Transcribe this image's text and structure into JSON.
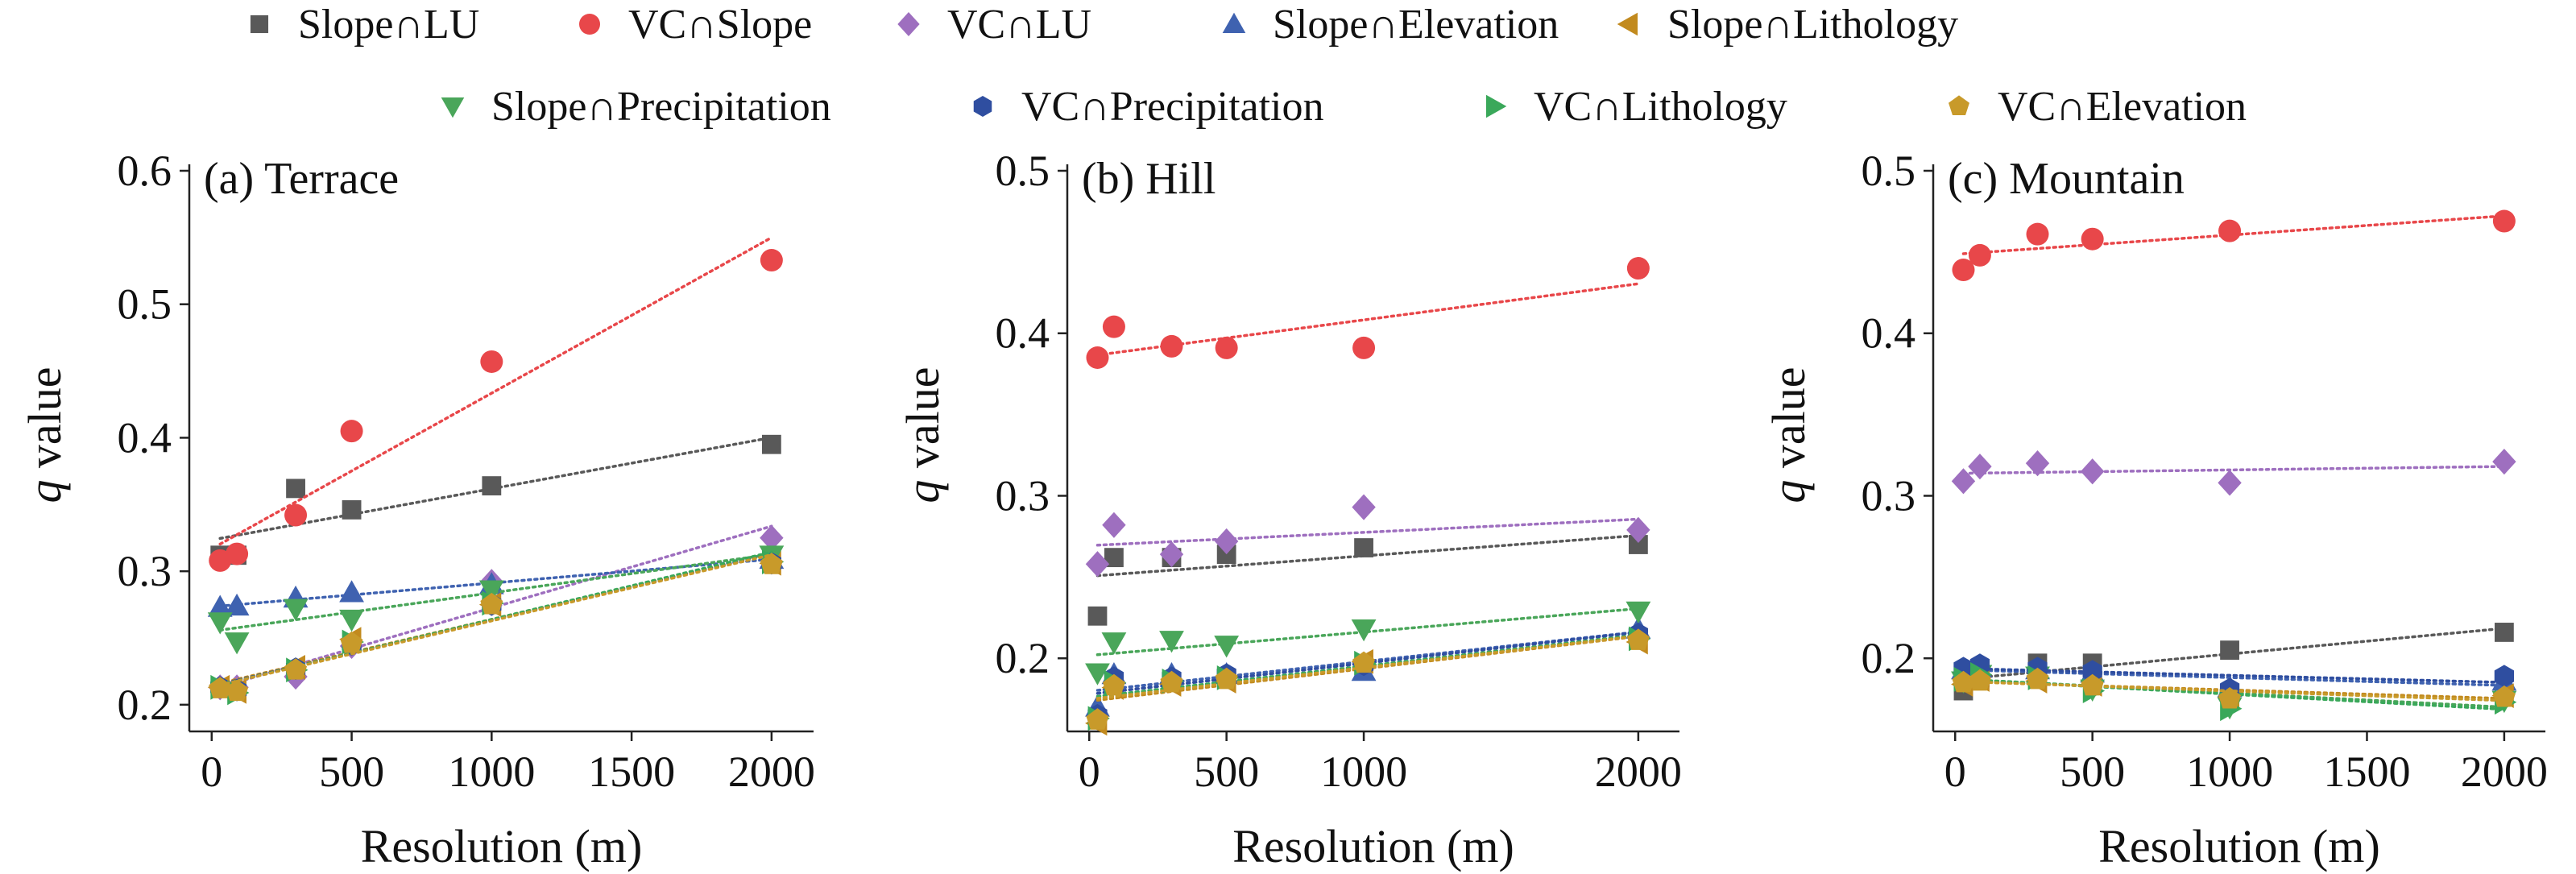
{
  "legend": {
    "row1": [
      {
        "label": "Slope∩LU",
        "marker": "square",
        "color": "#595959"
      },
      {
        "label": "VC∩Slope",
        "marker": "circle",
        "color": "#e8474a"
      },
      {
        "label": "VC∩LU",
        "marker": "diamond",
        "color": "#9e6fbf"
      },
      {
        "label": "Slope∩Elevation",
        "marker": "triangle-up",
        "color": "#3f62b0"
      },
      {
        "label": "Slope∩Lithology",
        "marker": "triangle-left",
        "color": "#c28a1e"
      }
    ],
    "row2": [
      {
        "label": "Slope∩Precipitation",
        "marker": "triangle-down",
        "color": "#4aa65a"
      },
      {
        "label": "VC∩Precipitation",
        "marker": "hexagon",
        "color": "#2f4ea0"
      },
      {
        "label": "VC∩Lithology",
        "marker": "triangle-right",
        "color": "#3aa85a"
      },
      {
        "label": "VC∩Elevation",
        "marker": "pentagon",
        "color": "#c89a2a"
      }
    ]
  },
  "chart_data": [
    {
      "type": "scatter",
      "title": "(a) Terrace",
      "xlabel": "Resolution (m)",
      "ylabel_italic": "q",
      "ylabel": " value",
      "xlim": [
        -80,
        2150
      ],
      "ylim": [
        0.18,
        0.6
      ],
      "xticks": [
        0,
        500,
        1000,
        1500,
        2000
      ],
      "yticks": [
        0.2,
        0.3,
        0.4,
        0.5,
        0.6
      ],
      "x": [
        30,
        90,
        300,
        500,
        1000,
        2000
      ],
      "trendlines": "dotted linear",
      "series": [
        {
          "name": "Slope∩LU",
          "values": [
            0.312,
            0.312,
            0.362,
            0.346,
            0.364,
            0.395
          ]
        },
        {
          "name": "VC∩Slope",
          "values": [
            0.308,
            0.313,
            0.342,
            0.405,
            0.457,
            0.533
          ]
        },
        {
          "name": "VC∩LU",
          "values": [
            0.213,
            0.213,
            0.221,
            0.244,
            0.292,
            0.325
          ]
        },
        {
          "name": "Slope∩Elevation",
          "values": [
            0.273,
            0.274,
            0.28,
            0.284,
            0.29,
            0.309
          ]
        },
        {
          "name": "Slope∩Lithology",
          "values": [
            0.213,
            0.21,
            0.228,
            0.249,
            0.275,
            0.306
          ]
        },
        {
          "name": "Slope∩Precipitation",
          "values": [
            0.262,
            0.247,
            0.272,
            0.264,
            0.286,
            0.312
          ]
        },
        {
          "name": "VC∩Precipitation",
          "values": [
            0.213,
            0.211,
            0.227,
            0.245,
            0.275,
            0.306
          ]
        },
        {
          "name": "VC∩Lithology",
          "values": [
            0.213,
            0.209,
            0.226,
            0.247,
            0.276,
            0.307
          ]
        },
        {
          "name": "VC∩Elevation",
          "values": [
            0.212,
            0.21,
            0.226,
            0.246,
            0.275,
            0.305
          ]
        }
      ]
    },
    {
      "type": "scatter",
      "title": "(b) Hill",
      "xlabel": "Resolution (m)",
      "ylabel_italic": "q",
      "ylabel": " value",
      "xlim": [
        -80,
        2150
      ],
      "ylim": [
        0.155,
        0.5
      ],
      "xticks": [
        0,
        500,
        1000,
        2000
      ],
      "yticks": [
        0.2,
        0.3,
        0.4,
        0.5
      ],
      "x": [
        30,
        90,
        300,
        500,
        1000,
        2000
      ],
      "trendlines": "dotted linear",
      "series": [
        {
          "name": "Slope∩LU",
          "values": [
            0.226,
            0.262,
            0.262,
            0.264,
            0.268,
            0.27
          ]
        },
        {
          "name": "VC∩Slope",
          "values": [
            0.385,
            0.404,
            0.392,
            0.391,
            0.391,
            0.44
          ]
        },
        {
          "name": "VC∩LU",
          "values": [
            0.258,
            0.282,
            0.264,
            0.272,
            0.293,
            0.279
          ]
        },
        {
          "name": "Slope∩Elevation",
          "values": [
            0.17,
            0.19,
            0.19,
            0.19,
            0.192,
            0.218
          ]
        },
        {
          "name": "Slope∩Lithology",
          "values": [
            0.16,
            0.182,
            0.184,
            0.186,
            0.198,
            0.21
          ]
        },
        {
          "name": "Slope∩Precipitation",
          "values": [
            0.191,
            0.21,
            0.211,
            0.208,
            0.218,
            0.229
          ]
        },
        {
          "name": "VC∩Precipitation",
          "values": [
            0.165,
            0.188,
            0.188,
            0.19,
            0.196,
            0.215
          ]
        },
        {
          "name": "VC∩Lithology",
          "values": [
            0.163,
            0.185,
            0.186,
            0.188,
            0.197,
            0.212
          ]
        },
        {
          "name": "VC∩Elevation",
          "values": [
            0.162,
            0.183,
            0.185,
            0.187,
            0.197,
            0.211
          ]
        }
      ]
    },
    {
      "type": "scatter",
      "title": "(c) Mountain",
      "xlabel": "Resolution (m)",
      "ylabel_italic": "q",
      "ylabel": " value",
      "xlim": [
        -80,
        2150
      ],
      "ylim": [
        0.155,
        0.5
      ],
      "xticks": [
        0,
        500,
        1000,
        1500,
        2000
      ],
      "yticks": [
        0.2,
        0.3,
        0.4,
        0.5
      ],
      "x": [
        30,
        90,
        300,
        500,
        1000,
        2000
      ],
      "trendlines": "dotted linear",
      "series": [
        {
          "name": "Slope∩LU",
          "values": [
            0.18,
            0.188,
            0.197,
            0.197,
            0.205,
            0.216
          ]
        },
        {
          "name": "VC∩Slope",
          "values": [
            0.439,
            0.448,
            0.461,
            0.458,
            0.463,
            0.469
          ]
        },
        {
          "name": "VC∩LU",
          "values": [
            0.309,
            0.318,
            0.32,
            0.315,
            0.308,
            0.321
          ]
        },
        {
          "name": "Slope∩Elevation",
          "values": [
            0.193,
            0.194,
            0.193,
            0.191,
            0.182,
            0.186
          ]
        },
        {
          "name": "Slope∩Lithology",
          "values": [
            0.184,
            0.187,
            0.186,
            0.184,
            0.176,
            0.177
          ]
        },
        {
          "name": "Slope∩Precipitation",
          "values": [
            0.186,
            0.19,
            0.189,
            0.181,
            0.17,
            0.174
          ]
        },
        {
          "name": "VC∩Precipitation",
          "values": [
            0.194,
            0.196,
            0.194,
            0.192,
            0.181,
            0.189
          ]
        },
        {
          "name": "VC∩Lithology",
          "values": [
            0.187,
            0.19,
            0.188,
            0.18,
            0.169,
            0.173
          ]
        },
        {
          "name": "VC∩Elevation",
          "values": [
            0.185,
            0.186,
            0.187,
            0.183,
            0.175,
            0.176
          ]
        }
      ]
    }
  ]
}
